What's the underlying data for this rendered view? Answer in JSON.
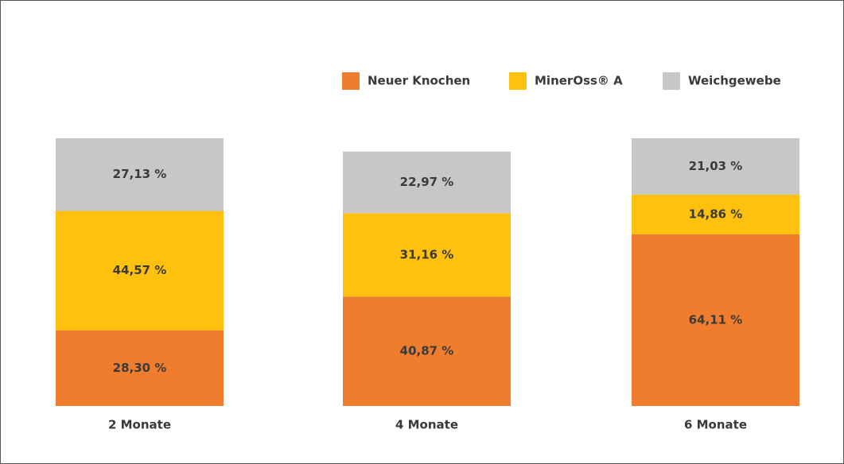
{
  "chart_data": {
    "type": "stacked_bar",
    "categories": [
      "2 Monate",
      "4 Monate",
      "6 Monate"
    ],
    "series": [
      {
        "name": "Neuer Knochen",
        "color": "#ef7d2d",
        "values": [
          28.3,
          40.87,
          64.11
        ],
        "value_labels": [
          "28,30 %",
          "40,87 %",
          "64,11 %"
        ]
      },
      {
        "name": "MinerOss® A",
        "color": "#fdc10e",
        "values": [
          44.57,
          31.16,
          14.86
        ],
        "value_labels": [
          "44,57 %",
          "31,16 %",
          "14,86 %"
        ]
      },
      {
        "name": "Weichgewebe",
        "color": "#c7c7c7",
        "values": [
          27.13,
          22.97,
          21.03
        ],
        "value_labels": [
          "27,13 %",
          "22,97 %",
          "21,03 %"
        ]
      }
    ],
    "ylim": [
      0,
      100
    ]
  }
}
